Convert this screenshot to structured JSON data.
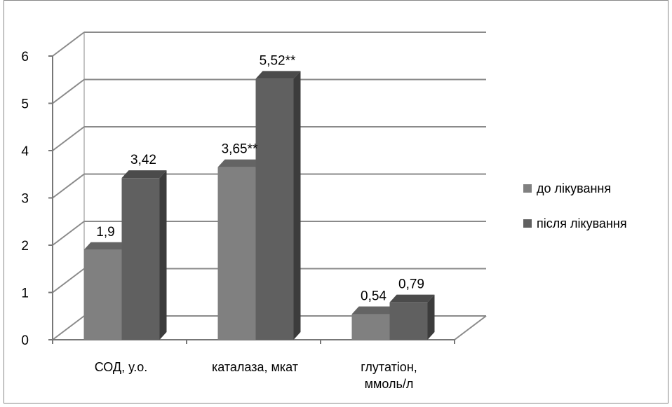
{
  "chart_data": {
    "type": "bar",
    "style": "3d-clustered-column",
    "categories": [
      [
        "СОД, у.о."
      ],
      [
        "каталаза, мкат"
      ],
      [
        "глутатіон,",
        "ммоль/л"
      ]
    ],
    "series": [
      {
        "name": "до лікування",
        "values": [
          1.9,
          3.65,
          0.54
        ],
        "labels": [
          "1,9",
          "3,65**",
          "0,54"
        ],
        "color": "#808080"
      },
      {
        "name": "після лікування",
        "values": [
          3.42,
          5.52,
          0.79
        ],
        "labels": [
          "3,42",
          "5,52**",
          "0,79"
        ],
        "color": "#606060"
      }
    ],
    "ylim": [
      0,
      6
    ],
    "yticks": [
      "0",
      "1",
      "2",
      "3",
      "4",
      "5",
      "6"
    ],
    "grid": true,
    "legend_position": "right"
  }
}
